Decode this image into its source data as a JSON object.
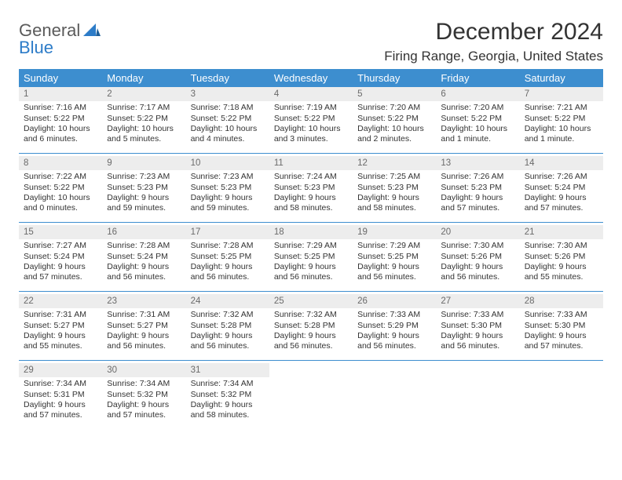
{
  "branding": {
    "name_a": "General",
    "name_b": "Blue"
  },
  "header": {
    "title": "December 2024",
    "location": "Firing Range, Georgia, United States"
  },
  "calendar": {
    "header_bg": "#3d8ecf",
    "header_fg": "#ffffff",
    "daynum_bg": "#ededed",
    "daynum_fg": "#6a6a6a",
    "rule_color": "#3d8ecf",
    "text_color": "#333333",
    "font_size_cell": 10.5,
    "font_size_header": 13,
    "weekdays": [
      "Sunday",
      "Monday",
      "Tuesday",
      "Wednesday",
      "Thursday",
      "Friday",
      "Saturday"
    ],
    "weeks": [
      [
        {
          "n": "1",
          "sr": "Sunrise: 7:16 AM",
          "ss": "Sunset: 5:22 PM",
          "d1": "Daylight: 10 hours",
          "d2": "and 6 minutes."
        },
        {
          "n": "2",
          "sr": "Sunrise: 7:17 AM",
          "ss": "Sunset: 5:22 PM",
          "d1": "Daylight: 10 hours",
          "d2": "and 5 minutes."
        },
        {
          "n": "3",
          "sr": "Sunrise: 7:18 AM",
          "ss": "Sunset: 5:22 PM",
          "d1": "Daylight: 10 hours",
          "d2": "and 4 minutes."
        },
        {
          "n": "4",
          "sr": "Sunrise: 7:19 AM",
          "ss": "Sunset: 5:22 PM",
          "d1": "Daylight: 10 hours",
          "d2": "and 3 minutes."
        },
        {
          "n": "5",
          "sr": "Sunrise: 7:20 AM",
          "ss": "Sunset: 5:22 PM",
          "d1": "Daylight: 10 hours",
          "d2": "and 2 minutes."
        },
        {
          "n": "6",
          "sr": "Sunrise: 7:20 AM",
          "ss": "Sunset: 5:22 PM",
          "d1": "Daylight: 10 hours",
          "d2": "and 1 minute."
        },
        {
          "n": "7",
          "sr": "Sunrise: 7:21 AM",
          "ss": "Sunset: 5:22 PM",
          "d1": "Daylight: 10 hours",
          "d2": "and 1 minute."
        }
      ],
      [
        {
          "n": "8",
          "sr": "Sunrise: 7:22 AM",
          "ss": "Sunset: 5:22 PM",
          "d1": "Daylight: 10 hours",
          "d2": "and 0 minutes."
        },
        {
          "n": "9",
          "sr": "Sunrise: 7:23 AM",
          "ss": "Sunset: 5:23 PM",
          "d1": "Daylight: 9 hours",
          "d2": "and 59 minutes."
        },
        {
          "n": "10",
          "sr": "Sunrise: 7:23 AM",
          "ss": "Sunset: 5:23 PM",
          "d1": "Daylight: 9 hours",
          "d2": "and 59 minutes."
        },
        {
          "n": "11",
          "sr": "Sunrise: 7:24 AM",
          "ss": "Sunset: 5:23 PM",
          "d1": "Daylight: 9 hours",
          "d2": "and 58 minutes."
        },
        {
          "n": "12",
          "sr": "Sunrise: 7:25 AM",
          "ss": "Sunset: 5:23 PM",
          "d1": "Daylight: 9 hours",
          "d2": "and 58 minutes."
        },
        {
          "n": "13",
          "sr": "Sunrise: 7:26 AM",
          "ss": "Sunset: 5:23 PM",
          "d1": "Daylight: 9 hours",
          "d2": "and 57 minutes."
        },
        {
          "n": "14",
          "sr": "Sunrise: 7:26 AM",
          "ss": "Sunset: 5:24 PM",
          "d1": "Daylight: 9 hours",
          "d2": "and 57 minutes."
        }
      ],
      [
        {
          "n": "15",
          "sr": "Sunrise: 7:27 AM",
          "ss": "Sunset: 5:24 PM",
          "d1": "Daylight: 9 hours",
          "d2": "and 57 minutes."
        },
        {
          "n": "16",
          "sr": "Sunrise: 7:28 AM",
          "ss": "Sunset: 5:24 PM",
          "d1": "Daylight: 9 hours",
          "d2": "and 56 minutes."
        },
        {
          "n": "17",
          "sr": "Sunrise: 7:28 AM",
          "ss": "Sunset: 5:25 PM",
          "d1": "Daylight: 9 hours",
          "d2": "and 56 minutes."
        },
        {
          "n": "18",
          "sr": "Sunrise: 7:29 AM",
          "ss": "Sunset: 5:25 PM",
          "d1": "Daylight: 9 hours",
          "d2": "and 56 minutes."
        },
        {
          "n": "19",
          "sr": "Sunrise: 7:29 AM",
          "ss": "Sunset: 5:25 PM",
          "d1": "Daylight: 9 hours",
          "d2": "and 56 minutes."
        },
        {
          "n": "20",
          "sr": "Sunrise: 7:30 AM",
          "ss": "Sunset: 5:26 PM",
          "d1": "Daylight: 9 hours",
          "d2": "and 56 minutes."
        },
        {
          "n": "21",
          "sr": "Sunrise: 7:30 AM",
          "ss": "Sunset: 5:26 PM",
          "d1": "Daylight: 9 hours",
          "d2": "and 55 minutes."
        }
      ],
      [
        {
          "n": "22",
          "sr": "Sunrise: 7:31 AM",
          "ss": "Sunset: 5:27 PM",
          "d1": "Daylight: 9 hours",
          "d2": "and 55 minutes."
        },
        {
          "n": "23",
          "sr": "Sunrise: 7:31 AM",
          "ss": "Sunset: 5:27 PM",
          "d1": "Daylight: 9 hours",
          "d2": "and 56 minutes."
        },
        {
          "n": "24",
          "sr": "Sunrise: 7:32 AM",
          "ss": "Sunset: 5:28 PM",
          "d1": "Daylight: 9 hours",
          "d2": "and 56 minutes."
        },
        {
          "n": "25",
          "sr": "Sunrise: 7:32 AM",
          "ss": "Sunset: 5:28 PM",
          "d1": "Daylight: 9 hours",
          "d2": "and 56 minutes."
        },
        {
          "n": "26",
          "sr": "Sunrise: 7:33 AM",
          "ss": "Sunset: 5:29 PM",
          "d1": "Daylight: 9 hours",
          "d2": "and 56 minutes."
        },
        {
          "n": "27",
          "sr": "Sunrise: 7:33 AM",
          "ss": "Sunset: 5:30 PM",
          "d1": "Daylight: 9 hours",
          "d2": "and 56 minutes."
        },
        {
          "n": "28",
          "sr": "Sunrise: 7:33 AM",
          "ss": "Sunset: 5:30 PM",
          "d1": "Daylight: 9 hours",
          "d2": "and 57 minutes."
        }
      ],
      [
        {
          "n": "29",
          "sr": "Sunrise: 7:34 AM",
          "ss": "Sunset: 5:31 PM",
          "d1": "Daylight: 9 hours",
          "d2": "and 57 minutes."
        },
        {
          "n": "30",
          "sr": "Sunrise: 7:34 AM",
          "ss": "Sunset: 5:32 PM",
          "d1": "Daylight: 9 hours",
          "d2": "and 57 minutes."
        },
        {
          "n": "31",
          "sr": "Sunrise: 7:34 AM",
          "ss": "Sunset: 5:32 PM",
          "d1": "Daylight: 9 hours",
          "d2": "and 58 minutes."
        },
        {
          "blank": true
        },
        {
          "blank": true
        },
        {
          "blank": true
        },
        {
          "blank": true
        }
      ]
    ]
  }
}
